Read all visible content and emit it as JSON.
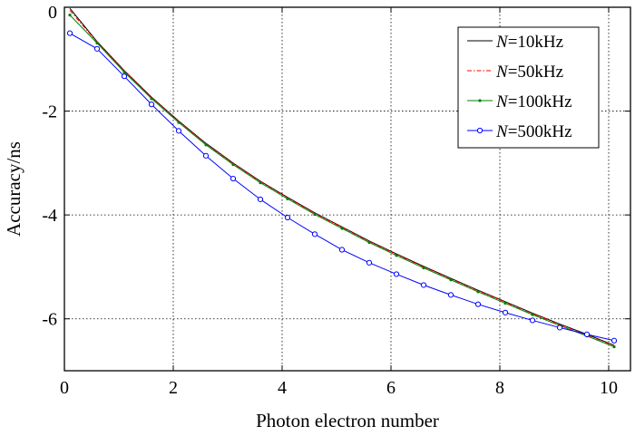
{
  "chart_data": {
    "type": "line",
    "title": "",
    "xlabel": "Photon electron number",
    "ylabel": "Accuracy/ns",
    "xlim": [
      0,
      10.4
    ],
    "ylim": [
      -7,
      0
    ],
    "xticks": [
      0,
      2,
      4,
      6,
      8,
      10
    ],
    "yticks": [
      0,
      -2,
      -4,
      -6
    ],
    "xtick_labels": [
      "0",
      "2",
      "4",
      "6",
      "8",
      "10"
    ],
    "ytick_labels": [
      "0",
      "-2",
      "-4",
      "-6"
    ],
    "grid": true,
    "legend_position": "top-right",
    "series": [
      {
        "name_var": "N",
        "name_rest": "=10kHz",
        "name": "N=10kHz",
        "color": "#000000",
        "style": "solid",
        "marker": "none",
        "x": [
          0.1,
          0.6,
          1.1,
          1.6,
          2.1,
          2.6,
          3.1,
          3.6,
          4.1,
          4.6,
          5.1,
          5.6,
          6.1,
          6.6,
          7.1,
          7.6,
          8.1,
          8.6,
          9.1,
          9.6,
          10.1
        ],
        "y": [
          -0.02,
          -0.66,
          -1.22,
          -1.73,
          -2.19,
          -2.62,
          -3.0,
          -3.35,
          -3.66,
          -3.96,
          -4.23,
          -4.5,
          -4.75,
          -4.99,
          -5.22,
          -5.45,
          -5.67,
          -5.89,
          -6.1,
          -6.3,
          -6.51
        ]
      },
      {
        "name_var": "N",
        "name_rest": "=50kHz",
        "name": "N=50kHz",
        "color": "#ff0000",
        "style": "dashdot",
        "marker": "none",
        "x": [
          0.1,
          0.6,
          1.1,
          1.6,
          2.1,
          2.6,
          3.1,
          3.6,
          4.1,
          4.6,
          5.1,
          5.6,
          6.1,
          6.6,
          7.1,
          7.6,
          8.1,
          8.6,
          9.1,
          9.6,
          10.1
        ],
        "y": [
          -0.06,
          -0.67,
          -1.23,
          -1.74,
          -2.2,
          -2.63,
          -3.01,
          -3.36,
          -3.67,
          -3.97,
          -4.24,
          -4.51,
          -4.76,
          -5.0,
          -5.23,
          -5.46,
          -5.68,
          -5.9,
          -6.11,
          -6.31,
          -6.52
        ]
      },
      {
        "name_var": "N",
        "name_rest": "=100kHz",
        "name": "N=100kHz",
        "color": "#008000",
        "style": "solid",
        "marker": "dot",
        "x": [
          0.1,
          0.6,
          1.1,
          1.6,
          2.1,
          2.6,
          3.1,
          3.6,
          4.1,
          4.6,
          5.1,
          5.6,
          6.1,
          6.6,
          7.1,
          7.6,
          8.1,
          8.6,
          9.1,
          9.6,
          10.1
        ],
        "y": [
          -0.15,
          -0.69,
          -1.25,
          -1.76,
          -2.22,
          -2.65,
          -3.03,
          -3.38,
          -3.69,
          -3.99,
          -4.26,
          -4.53,
          -4.78,
          -5.02,
          -5.25,
          -5.48,
          -5.7,
          -5.92,
          -6.13,
          -6.33,
          -6.54
        ]
      },
      {
        "name_var": "N",
        "name_rest": "=500kHz",
        "name": "N=500kHz",
        "color": "#0000ff",
        "style": "solid",
        "marker": "circle",
        "x": [
          0.1,
          0.6,
          1.1,
          1.6,
          2.1,
          2.6,
          3.1,
          3.6,
          4.1,
          4.6,
          5.1,
          5.6,
          6.1,
          6.6,
          7.1,
          7.6,
          8.1,
          8.6,
          9.1,
          9.6,
          10.1
        ],
        "y": [
          -0.5,
          -0.8,
          -1.33,
          -1.87,
          -2.38,
          -2.86,
          -3.3,
          -3.7,
          -4.05,
          -4.37,
          -4.67,
          -4.92,
          -5.14,
          -5.35,
          -5.54,
          -5.72,
          -5.88,
          -6.03,
          -6.17,
          -6.3,
          -6.42
        ]
      }
    ]
  }
}
